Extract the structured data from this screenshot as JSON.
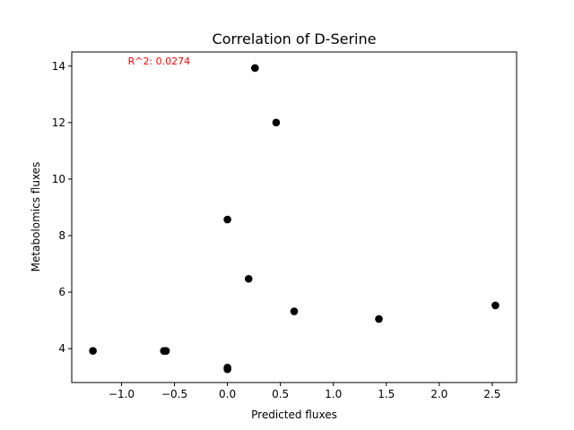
{
  "chart_data": {
    "type": "scatter",
    "title": "Correlation of D-Serine",
    "xlabel": "Predicted fluxes",
    "ylabel": "Metabolomics fluxes",
    "xlim": [
      -1.47,
      2.73
    ],
    "ylim": [
      2.8,
      14.5
    ],
    "xticks": [
      -1.0,
      -0.5,
      0.0,
      0.5,
      1.0,
      1.5,
      2.0,
      2.5
    ],
    "xtick_labels": [
      "−1.0",
      "−0.5",
      "0.0",
      "0.5",
      "1.0",
      "1.5",
      "2.0",
      "2.5"
    ],
    "yticks": [
      4,
      6,
      8,
      10,
      12,
      14
    ],
    "ytick_labels": [
      "4",
      "6",
      "8",
      "10",
      "12",
      "14"
    ],
    "grid": false,
    "point_color": "#000000",
    "points": [
      {
        "x": -1.27,
        "y": 3.92
      },
      {
        "x": -0.6,
        "y": 3.92
      },
      {
        "x": -0.58,
        "y": 3.92
      },
      {
        "x": 0.0,
        "y": 3.33
      },
      {
        "x": 0.0,
        "y": 3.27
      },
      {
        "x": 0.0,
        "y": 8.57
      },
      {
        "x": 0.2,
        "y": 6.47
      },
      {
        "x": 0.26,
        "y": 13.93
      },
      {
        "x": 0.46,
        "y": 12.0
      },
      {
        "x": 0.63,
        "y": 5.32
      },
      {
        "x": 1.43,
        "y": 5.05
      },
      {
        "x": 2.53,
        "y": 5.53
      }
    ],
    "annotation": {
      "text": "R^2: 0.0274",
      "x": -0.94,
      "y": 14.0,
      "color": "#ff0000"
    }
  }
}
